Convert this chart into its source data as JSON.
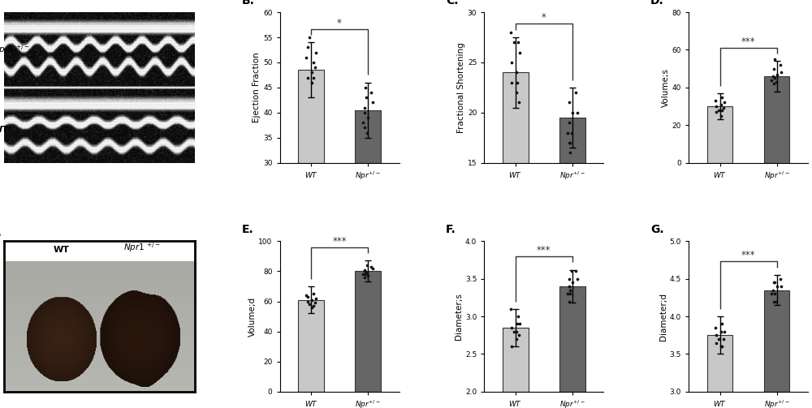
{
  "panels": {
    "B": {
      "label": "B.",
      "ylabel": "Ejection Fraction",
      "ylim": [
        30,
        60
      ],
      "yticks": [
        30,
        35,
        40,
        45,
        50,
        55,
        60
      ],
      "bar_wt": 48.5,
      "bar_npr": 40.5,
      "err_wt": 5.5,
      "err_npr": 5.5,
      "sig": "*",
      "bar_color_wt": "#c8c8c8",
      "bar_color_npr": "#666666",
      "dots_wt": [
        55,
        52,
        50,
        48,
        47,
        53,
        51,
        49,
        46,
        47
      ],
      "dots_npr": [
        38,
        42,
        44,
        37,
        40,
        41,
        43,
        39,
        36,
        45
      ]
    },
    "C": {
      "label": "C.",
      "ylabel": "Fractional Shortening",
      "ylim": [
        15,
        30
      ],
      "yticks": [
        15,
        20,
        25,
        30
      ],
      "bar_wt": 24.0,
      "bar_npr": 19.5,
      "err_wt": 3.5,
      "err_npr": 3.0,
      "sig": "*",
      "bar_color_wt": "#c8c8c8",
      "bar_color_npr": "#666666",
      "dots_wt": [
        27,
        26,
        27,
        22,
        23,
        25,
        28,
        21,
        24,
        23
      ],
      "dots_npr": [
        18,
        20,
        22,
        17,
        19,
        21,
        16,
        20,
        18,
        17
      ]
    },
    "D": {
      "label": "D.",
      "ylabel": "Volume;s",
      "ylim": [
        0,
        80
      ],
      "yticks": [
        0,
        20,
        40,
        60,
        80
      ],
      "bar_wt": 30.0,
      "bar_npr": 46.0,
      "err_wt": 7.0,
      "err_npr": 8.0,
      "sig": "***",
      "bar_color_wt": "#c8c8c8",
      "bar_color_npr": "#666666",
      "dots_wt": [
        28,
        32,
        35,
        25,
        30,
        27,
        33,
        29,
        31,
        28
      ],
      "dots_npr": [
        44,
        48,
        52,
        42,
        46,
        50,
        45,
        47,
        43,
        55
      ]
    },
    "E": {
      "label": "E.",
      "ylabel": "Volume;d",
      "ylim": [
        0,
        100
      ],
      "yticks": [
        0,
        20,
        40,
        60,
        80,
        100
      ],
      "bar_wt": 61.0,
      "bar_npr": 80.0,
      "err_wt": 9.0,
      "err_npr": 7.0,
      "sig": "***",
      "bar_color_wt": "#c8c8c8",
      "bar_color_npr": "#666666",
      "dots_wt": [
        58,
        62,
        65,
        56,
        60,
        63,
        64,
        59,
        61,
        57
      ],
      "dots_npr": [
        78,
        82,
        83,
        76,
        80,
        81,
        79,
        77,
        84,
        78
      ]
    },
    "F": {
      "label": "F.",
      "ylabel": "Diameter;s",
      "ylim": [
        2.0,
        4.0
      ],
      "yticks": [
        2.0,
        2.5,
        3.0,
        3.5,
        4.0
      ],
      "bar_wt": 2.85,
      "bar_npr": 3.4,
      "err_wt": 0.25,
      "err_npr": 0.22,
      "sig": "***",
      "bar_color_wt": "#c8c8c8",
      "bar_color_npr": "#666666",
      "dots_wt": [
        2.8,
        2.9,
        3.0,
        2.7,
        2.85,
        2.6,
        3.1,
        2.75,
        2.8,
        2.9
      ],
      "dots_npr": [
        3.3,
        3.5,
        3.6,
        3.2,
        3.4,
        3.5,
        3.3,
        3.45,
        3.6,
        3.35
      ]
    },
    "G": {
      "label": "G.",
      "ylabel": "Diameter;d",
      "ylim": [
        3.0,
        5.0
      ],
      "yticks": [
        3.0,
        3.5,
        4.0,
        4.5,
        5.0
      ],
      "bar_wt": 3.75,
      "bar_npr": 4.35,
      "err_wt": 0.25,
      "err_npr": 0.2,
      "sig": "***",
      "bar_color_wt": "#c8c8c8",
      "bar_color_npr": "#666666",
      "dots_wt": [
        3.7,
        3.8,
        3.9,
        3.6,
        3.75,
        3.65,
        3.85,
        3.7,
        3.8,
        3.6
      ],
      "dots_npr": [
        4.3,
        4.4,
        4.5,
        4.2,
        4.35,
        4.45,
        4.3,
        4.4,
        4.2,
        4.45
      ]
    }
  },
  "dot_color": "#111111",
  "dot_size": 7,
  "bar_width": 0.45,
  "bar_edge_color": "#333333",
  "sig_line_color": "#333333",
  "background_color": "#ffffff",
  "panel_label_fontsize": 10,
  "axis_label_fontsize": 7.5,
  "tick_fontsize": 6.5,
  "xtick_fontsize": 6.5
}
